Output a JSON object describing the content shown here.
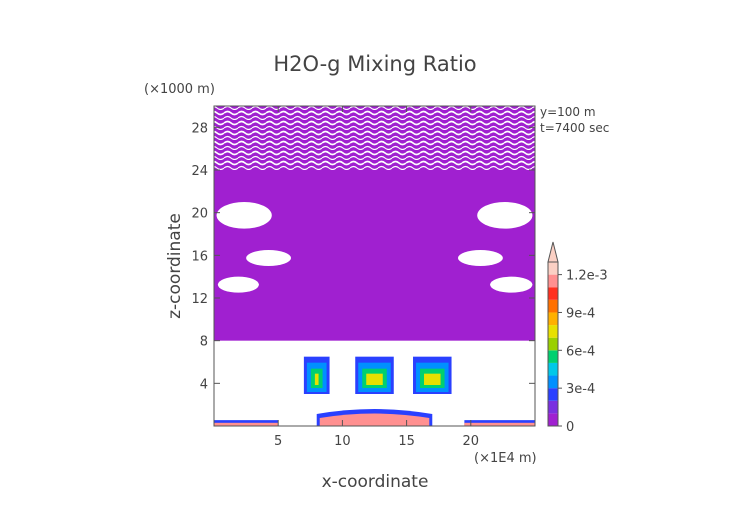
{
  "chart_data": {
    "type": "heatmap",
    "title": "H2O-g Mixing Ratio",
    "xlabel": "x-coordinate",
    "ylabel": "z-coordinate",
    "x_unit": "(×1E4 m)",
    "y_unit": "(×1000 m)",
    "annotations": [
      "y=100 m",
      "t=7400 sec"
    ],
    "xlim": [
      0,
      25
    ],
    "ylim": [
      0,
      30
    ],
    "x_ticks": [
      5,
      10,
      15,
      20
    ],
    "x_tick_labels": [
      "5",
      "10",
      "15",
      "20"
    ],
    "y_ticks": [
      4,
      8,
      12,
      16,
      20,
      24,
      28
    ],
    "y_tick_labels": [
      "4",
      "8",
      "12",
      "16",
      "20",
      "24",
      "28"
    ],
    "colorbar": {
      "min": 0,
      "max": 0.0013,
      "extend": "max",
      "tick_values": [
        0,
        0.0003,
        0.0006,
        0.0009,
        0.0012
      ],
      "tick_labels": [
        "0",
        "3e-4",
        "6e-4",
        "9e-4",
        "1.2e-3"
      ],
      "levels": [
        0,
        0.0001,
        0.0002,
        0.0003,
        0.0004,
        0.0005,
        0.0006,
        0.0007,
        0.0008,
        0.0009,
        0.001,
        0.0011,
        0.0012,
        0.0013
      ],
      "colors": [
        "#a020d0",
        "#7a30e0",
        "#2a40ff",
        "#0090ff",
        "#00c8e8",
        "#00d070",
        "#9ad000",
        "#e8e000",
        "#ffb000",
        "#ff7000",
        "#ff3020",
        "#ff9090",
        "#fbd0c4"
      ]
    },
    "regions": [
      {
        "name": "upper-moist-layer",
        "level_index": 0,
        "x": [
          0,
          25
        ],
        "z": [
          8,
          30
        ]
      },
      {
        "name": "mid-plume-left",
        "level_index": 3,
        "x": [
          7,
          9
        ],
        "z": [
          3,
          6.5
        ]
      },
      {
        "name": "mid-plume-center",
        "level_index": 3,
        "x": [
          11,
          14
        ],
        "z": [
          3,
          6.5
        ]
      },
      {
        "name": "mid-plume-right",
        "level_index": 3,
        "x": [
          15.5,
          18.5
        ],
        "z": [
          3,
          6.5
        ]
      },
      {
        "name": "surface-layer-left",
        "level_index": 11,
        "x": [
          0,
          5
        ],
        "z": [
          0,
          0.3
        ]
      },
      {
        "name": "surface-layer-center",
        "level_index": 11,
        "x": [
          8,
          17
        ],
        "z": [
          0,
          1.5
        ]
      },
      {
        "name": "surface-layer-right",
        "level_index": 11,
        "x": [
          19.5,
          25
        ],
        "z": [
          0,
          0.3
        ]
      }
    ]
  }
}
